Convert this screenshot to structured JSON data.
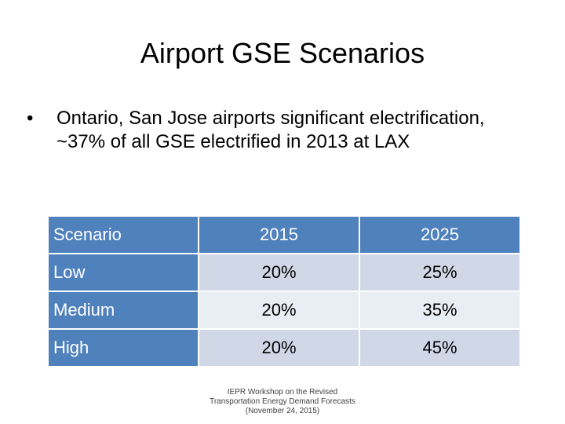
{
  "slide": {
    "title": "Airport GSE Scenarios",
    "bullet": "Ontario, San Jose airports significant electrification, ~37% of all GSE electrified in 2013 at LAX",
    "bullet_glyph": "•"
  },
  "table": {
    "headers": [
      "Scenario",
      "2015",
      "2025"
    ],
    "rows": [
      [
        "Low",
        "20%",
        "25%"
      ],
      [
        "Medium",
        "20%",
        "35%"
      ],
      [
        "High",
        "20%",
        "45%"
      ]
    ]
  },
  "footer": {
    "line1": "IEPR Workshop on the Revised",
    "line2": "Transportation Energy Demand Forecasts",
    "line3": "(November 24, 2015)"
  },
  "colors": {
    "header_fill": "#4f81bd",
    "row_fill_dark": "#d0d8e8",
    "row_fill_light": "#e9edf4"
  }
}
